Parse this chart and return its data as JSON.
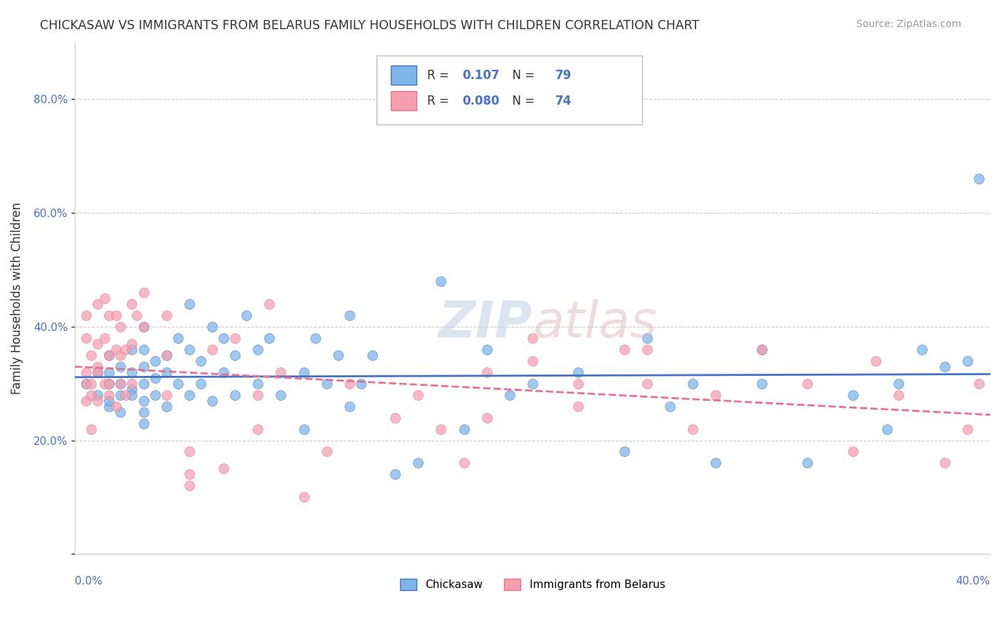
{
  "title": "CHICKASAW VS IMMIGRANTS FROM BELARUS FAMILY HOUSEHOLDS WITH CHILDREN CORRELATION CHART",
  "source": "Source: ZipAtlas.com",
  "ylabel": "Family Households with Children",
  "xlabel_bottom_left": "0.0%",
  "xlabel_bottom_right": "40.0%",
  "legend_label_1": "Chickasaw",
  "legend_label_2": "Immigrants from Belarus",
  "R1": 0.107,
  "N1": 79,
  "R2": 0.08,
  "N2": 74,
  "color_blue": "#7EB6E8",
  "color_pink": "#F4A0B0",
  "color_blue_dark": "#4472C4",
  "color_pink_dark": "#E87090",
  "xlim": [
    0.0,
    0.4
  ],
  "ylim": [
    0.0,
    0.9
  ],
  "yticks": [
    0.0,
    0.2,
    0.4,
    0.6,
    0.8
  ],
  "ytick_labels": [
    "",
    "20.0%",
    "40.0%",
    "60.0%",
    "80.0%"
  ],
  "background_color": "#FFFFFF",
  "grid_color": "#CCCCCC",
  "seed": 42,
  "blue_points_x": [
    0.005,
    0.01,
    0.01,
    0.015,
    0.015,
    0.015,
    0.015,
    0.015,
    0.02,
    0.02,
    0.02,
    0.02,
    0.025,
    0.025,
    0.025,
    0.025,
    0.03,
    0.03,
    0.03,
    0.03,
    0.03,
    0.03,
    0.03,
    0.035,
    0.035,
    0.035,
    0.04,
    0.04,
    0.04,
    0.045,
    0.045,
    0.05,
    0.05,
    0.05,
    0.055,
    0.055,
    0.06,
    0.06,
    0.065,
    0.065,
    0.07,
    0.07,
    0.075,
    0.08,
    0.08,
    0.085,
    0.09,
    0.1,
    0.1,
    0.105,
    0.11,
    0.115,
    0.12,
    0.12,
    0.125,
    0.13,
    0.14,
    0.15,
    0.16,
    0.17,
    0.18,
    0.19,
    0.2,
    0.22,
    0.24,
    0.25,
    0.26,
    0.27,
    0.28,
    0.3,
    0.3,
    0.32,
    0.34,
    0.355,
    0.36,
    0.37,
    0.38,
    0.39,
    0.395
  ],
  "blue_points_y": [
    0.3,
    0.28,
    0.32,
    0.26,
    0.3,
    0.32,
    0.35,
    0.27,
    0.28,
    0.3,
    0.33,
    0.25,
    0.29,
    0.32,
    0.36,
    0.28,
    0.25,
    0.3,
    0.33,
    0.36,
    0.4,
    0.27,
    0.23,
    0.31,
    0.34,
    0.28,
    0.32,
    0.35,
    0.26,
    0.3,
    0.38,
    0.28,
    0.36,
    0.44,
    0.3,
    0.34,
    0.4,
    0.27,
    0.32,
    0.38,
    0.28,
    0.35,
    0.42,
    0.36,
    0.3,
    0.38,
    0.28,
    0.32,
    0.22,
    0.38,
    0.3,
    0.35,
    0.42,
    0.26,
    0.3,
    0.35,
    0.14,
    0.16,
    0.48,
    0.22,
    0.36,
    0.28,
    0.3,
    0.32,
    0.18,
    0.38,
    0.26,
    0.3,
    0.16,
    0.36,
    0.3,
    0.16,
    0.28,
    0.22,
    0.3,
    0.36,
    0.33,
    0.34,
    0.66
  ],
  "pink_points_x": [
    0.005,
    0.005,
    0.005,
    0.005,
    0.005,
    0.007,
    0.007,
    0.007,
    0.007,
    0.01,
    0.01,
    0.01,
    0.01,
    0.01,
    0.013,
    0.013,
    0.013,
    0.015,
    0.015,
    0.015,
    0.015,
    0.018,
    0.018,
    0.018,
    0.02,
    0.02,
    0.02,
    0.022,
    0.022,
    0.025,
    0.025,
    0.025,
    0.027,
    0.03,
    0.03,
    0.04,
    0.04,
    0.04,
    0.05,
    0.05,
    0.05,
    0.06,
    0.065,
    0.07,
    0.08,
    0.08,
    0.085,
    0.09,
    0.1,
    0.11,
    0.12,
    0.14,
    0.15,
    0.16,
    0.17,
    0.18,
    0.2,
    0.22,
    0.24,
    0.25,
    0.27,
    0.28,
    0.3,
    0.32,
    0.34,
    0.35,
    0.36,
    0.38,
    0.39,
    0.395,
    0.2,
    0.18,
    0.22,
    0.25
  ],
  "pink_points_y": [
    0.3,
    0.32,
    0.27,
    0.42,
    0.38,
    0.28,
    0.35,
    0.3,
    0.22,
    0.44,
    0.33,
    0.27,
    0.37,
    0.32,
    0.45,
    0.3,
    0.38,
    0.28,
    0.42,
    0.35,
    0.3,
    0.36,
    0.42,
    0.26,
    0.4,
    0.35,
    0.3,
    0.36,
    0.28,
    0.44,
    0.37,
    0.3,
    0.42,
    0.46,
    0.4,
    0.28,
    0.35,
    0.42,
    0.14,
    0.18,
    0.12,
    0.36,
    0.15,
    0.38,
    0.22,
    0.28,
    0.44,
    0.32,
    0.1,
    0.18,
    0.3,
    0.24,
    0.28,
    0.22,
    0.16,
    0.32,
    0.34,
    0.26,
    0.36,
    0.3,
    0.22,
    0.28,
    0.36,
    0.3,
    0.18,
    0.34,
    0.28,
    0.16,
    0.22,
    0.3,
    0.38,
    0.24,
    0.3,
    0.36
  ]
}
